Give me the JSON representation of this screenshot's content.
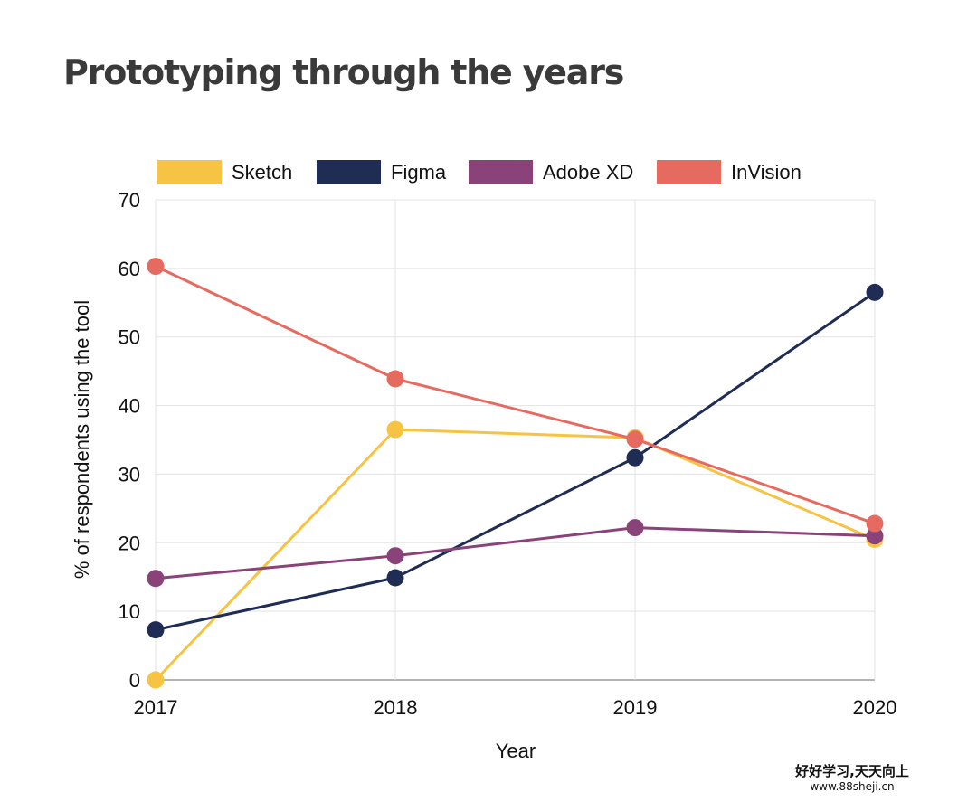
{
  "chart_data": {
    "type": "line",
    "title": "Prototyping through the years",
    "xlabel": "Year",
    "ylabel": "% of respondents using the tool",
    "categories": [
      "2017",
      "2018",
      "2019",
      "2020"
    ],
    "ylim": [
      0,
      70
    ],
    "yticks": [
      0,
      10,
      20,
      30,
      40,
      50,
      60,
      70
    ],
    "grid": true,
    "legend": "top",
    "series": [
      {
        "name": "Sketch",
        "color": "#F6C343",
        "values": [
          0,
          36.5,
          35.3,
          20.5
        ]
      },
      {
        "name": "Figma",
        "color": "#1F2D55",
        "values": [
          7.3,
          14.9,
          32.4,
          56.5
        ]
      },
      {
        "name": "Adobe XD",
        "color": "#8A4379",
        "values": [
          14.8,
          18.1,
          22.2,
          21.0
        ]
      },
      {
        "name": "InVision",
        "color": "#E76A60",
        "values": [
          60.3,
          43.9,
          35.1,
          22.8
        ]
      }
    ]
  },
  "watermark": {
    "text": "好好学习,天天向上",
    "url": "www.88sheji.cn"
  }
}
